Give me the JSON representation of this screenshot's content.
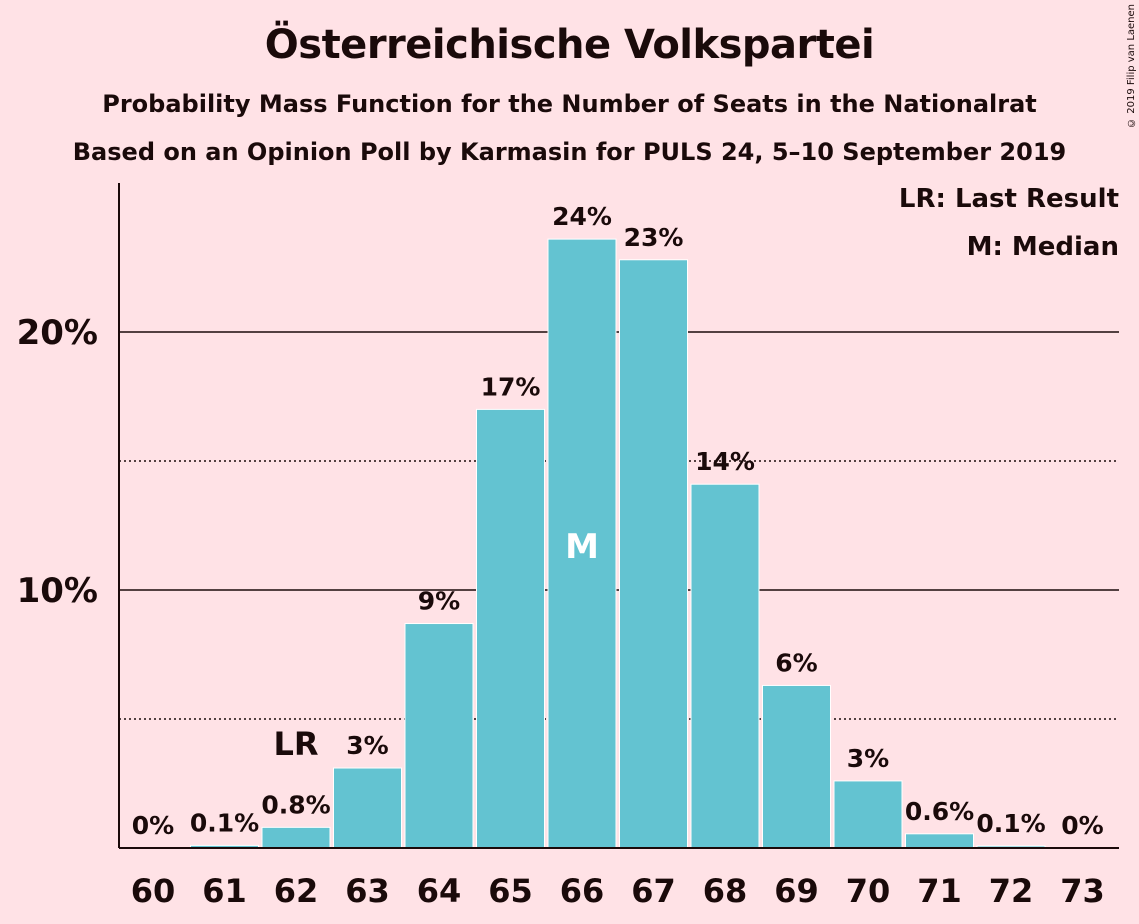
{
  "page": {
    "copyright": "© 2019 Filip van Laenen"
  },
  "chart_data": {
    "type": "bar",
    "title": "Österreichische Volkspartei",
    "subtitle": "Probability Mass Function for the Number of Seats in the Nationalrat",
    "subtitle2": "Based on an Opinion Poll by Karmasin for PULS 24, 5–10 September 2019",
    "categories": [
      "60",
      "61",
      "62",
      "63",
      "64",
      "65",
      "66",
      "67",
      "68",
      "69",
      "70",
      "71",
      "72",
      "73"
    ],
    "values": [
      0,
      0.1,
      0.8,
      3.1,
      8.7,
      17.0,
      23.6,
      22.8,
      14.1,
      6.3,
      2.6,
      0.55,
      0.08,
      0
    ],
    "data_labels": [
      "0%",
      "0.1%",
      "0.8%",
      "3%",
      "9%",
      "17%",
      "24%",
      "23%",
      "14%",
      "6%",
      "3%",
      "0.6%",
      "0.1%",
      "0%"
    ],
    "ylim": [
      0,
      25.8
    ],
    "yticks": [
      10,
      20
    ],
    "ytick_labels": [
      "10%",
      "20%"
    ],
    "minor_gridlines": [
      5,
      15
    ],
    "grid": true,
    "bar_color": "#63C3D1",
    "background_color": "#FFE2E6",
    "last_result": {
      "category": "62",
      "label": "LR"
    },
    "median": {
      "category": "66",
      "label": "M"
    },
    "legend": [
      "LR: Last Result",
      "M: Median"
    ],
    "legend_position": "top-right"
  }
}
